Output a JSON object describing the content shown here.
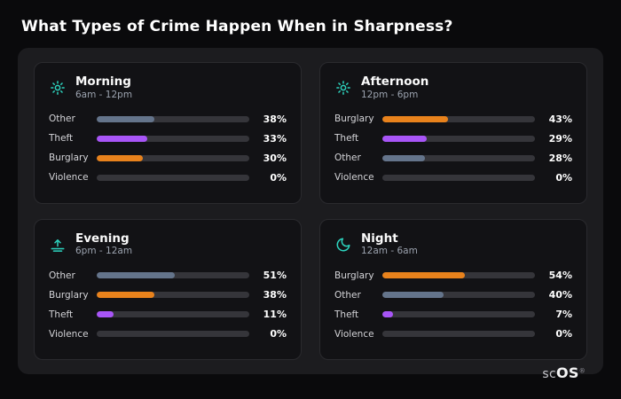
{
  "page_title": "What Types of Crime Happen When in Sharpness?",
  "brand": {
    "prefix": "sc",
    "suffix": "OS",
    "registered": "®"
  },
  "colors": {
    "background": "#0a0a0c",
    "panel": "#1c1c1f",
    "card": "#121215",
    "track": "#35353a",
    "bar_other": "#64748b",
    "bar_theft": "#a855f7",
    "bar_burglary": "#e8821c",
    "icon_accent": "#2dd4bf"
  },
  "cards": [
    {
      "title": "Morning",
      "subtitle": "6am - 12pm",
      "icon": "sun-icon",
      "rows": [
        {
          "label": "Other",
          "value": 38,
          "pct": "38%",
          "color": "#64748b"
        },
        {
          "label": "Theft",
          "value": 33,
          "pct": "33%",
          "color": "#a855f7"
        },
        {
          "label": "Burglary",
          "value": 30,
          "pct": "30%",
          "color": "#e8821c"
        },
        {
          "label": "Violence",
          "value": 0,
          "pct": "0%",
          "color": "#71717a"
        }
      ]
    },
    {
      "title": "Afternoon",
      "subtitle": "12pm - 6pm",
      "icon": "sun-icon",
      "rows": [
        {
          "label": "Burglary",
          "value": 43,
          "pct": "43%",
          "color": "#e8821c"
        },
        {
          "label": "Theft",
          "value": 29,
          "pct": "29%",
          "color": "#a855f7"
        },
        {
          "label": "Other",
          "value": 28,
          "pct": "28%",
          "color": "#64748b"
        },
        {
          "label": "Violence",
          "value": 0,
          "pct": "0%",
          "color": "#71717a"
        }
      ]
    },
    {
      "title": "Evening",
      "subtitle": "6pm - 12am",
      "icon": "sunset-icon",
      "rows": [
        {
          "label": "Other",
          "value": 51,
          "pct": "51%",
          "color": "#64748b"
        },
        {
          "label": "Burglary",
          "value": 38,
          "pct": "38%",
          "color": "#e8821c"
        },
        {
          "label": "Theft",
          "value": 11,
          "pct": "11%",
          "color": "#a855f7"
        },
        {
          "label": "Violence",
          "value": 0,
          "pct": "0%",
          "color": "#71717a"
        }
      ]
    },
    {
      "title": "Night",
      "subtitle": "12am - 6am",
      "icon": "moon-icon",
      "rows": [
        {
          "label": "Burglary",
          "value": 54,
          "pct": "54%",
          "color": "#e8821c"
        },
        {
          "label": "Other",
          "value": 40,
          "pct": "40%",
          "color": "#64748b"
        },
        {
          "label": "Theft",
          "value": 7,
          "pct": "7%",
          "color": "#a855f7"
        },
        {
          "label": "Violence",
          "value": 0,
          "pct": "0%",
          "color": "#71717a"
        }
      ]
    }
  ],
  "chart_data": [
    {
      "type": "bar",
      "orientation": "horizontal",
      "title": "Morning",
      "subtitle": "6am - 12pm",
      "categories": [
        "Other",
        "Theft",
        "Burglary",
        "Violence"
      ],
      "values": [
        38,
        33,
        30,
        0
      ],
      "unit": "%",
      "xlim": [
        0,
        100
      ],
      "grid": false,
      "legend": false
    },
    {
      "type": "bar",
      "orientation": "horizontal",
      "title": "Afternoon",
      "subtitle": "12pm - 6pm",
      "categories": [
        "Burglary",
        "Theft",
        "Other",
        "Violence"
      ],
      "values": [
        43,
        29,
        28,
        0
      ],
      "unit": "%",
      "xlim": [
        0,
        100
      ],
      "grid": false,
      "legend": false
    },
    {
      "type": "bar",
      "orientation": "horizontal",
      "title": "Evening",
      "subtitle": "6pm - 12am",
      "categories": [
        "Other",
        "Burglary",
        "Theft",
        "Violence"
      ],
      "values": [
        51,
        38,
        11,
        0
      ],
      "unit": "%",
      "xlim": [
        0,
        100
      ],
      "grid": false,
      "legend": false
    },
    {
      "type": "bar",
      "orientation": "horizontal",
      "title": "Night",
      "subtitle": "12am - 6am",
      "categories": [
        "Burglary",
        "Other",
        "Theft",
        "Violence"
      ],
      "values": [
        54,
        40,
        7,
        0
      ],
      "unit": "%",
      "xlim": [
        0,
        100
      ],
      "grid": false,
      "legend": false
    }
  ]
}
